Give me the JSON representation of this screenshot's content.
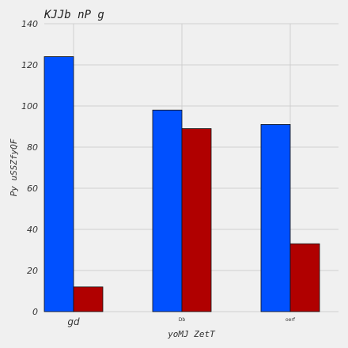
{
  "chart_data": {
    "type": "bar",
    "title": "KJJb nP g",
    "xlabel": "yoMJ ZetT",
    "ylabel": "Py  uSSZfyQF",
    "categories": [
      "gd",
      "Db",
      "oerf"
    ],
    "series": [
      {
        "values": [
          124,
          98,
          91
        ],
        "color": "#0050ff"
      },
      {
        "values": [
          12,
          89,
          33
        ],
        "color": "#b00000"
      }
    ],
    "ylim": [
      0,
      140
    ],
    "yticks": [
      0,
      20,
      40,
      60,
      80,
      100,
      120,
      140
    ],
    "grid": true
  }
}
